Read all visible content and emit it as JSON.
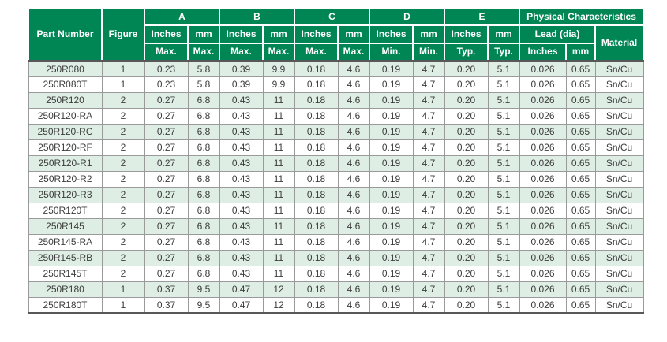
{
  "colors": {
    "header_green": "#008554",
    "header_text": "#ffffff",
    "row_shaded": "#deeee5",
    "row_plain": "#ffffff",
    "grid_line": "#9a9a9a",
    "heavy_line": "#58585a",
    "body_text": "#3c3c3c"
  },
  "table": {
    "header": {
      "part_number": "Part Number",
      "figure": "Figure",
      "groups": [
        {
          "label": "A",
          "unit_inches": "Inches",
          "unit_mm": "mm",
          "spec_inches": "Max.",
          "spec_mm": "Max."
        },
        {
          "label": "B",
          "unit_inches": "Inches",
          "unit_mm": "mm",
          "spec_inches": "Max.",
          "spec_mm": "Max."
        },
        {
          "label": "C",
          "unit_inches": "Inches",
          "unit_mm": "mm",
          "spec_inches": "Max.",
          "spec_mm": "Max."
        },
        {
          "label": "D",
          "unit_inches": "Inches",
          "unit_mm": "mm",
          "spec_inches": "Min.",
          "spec_mm": "Min."
        },
        {
          "label": "E",
          "unit_inches": "Inches",
          "unit_mm": "mm",
          "spec_inches": "Typ.",
          "spec_mm": "Typ."
        }
      ],
      "physical": {
        "label": "Physical Characteristics",
        "lead_label": "Lead (dia)",
        "lead_inches": "Inches",
        "lead_mm": "mm",
        "material": "Material"
      }
    },
    "rows": [
      {
        "part_number": "250R080",
        "figure": "1",
        "values": [
          "0.23",
          "5.8",
          "0.39",
          "9.9",
          "0.18",
          "4.6",
          "0.19",
          "4.7",
          "0.20",
          "5.1",
          "0.026",
          "0.65",
          "Sn/Cu"
        ]
      },
      {
        "part_number": "250R080T",
        "figure": "1",
        "values": [
          "0.23",
          "5.8",
          "0.39",
          "9.9",
          "0.18",
          "4.6",
          "0.19",
          "4.7",
          "0.20",
          "5.1",
          "0.026",
          "0.65",
          "Sn/Cu"
        ]
      },
      {
        "part_number": "250R120",
        "figure": "2",
        "values": [
          "0.27",
          "6.8",
          "0.43",
          "11",
          "0.18",
          "4.6",
          "0.19",
          "4.7",
          "0.20",
          "5.1",
          "0.026",
          "0.65",
          "Sn/Cu"
        ]
      },
      {
        "part_number": "250R120-RA",
        "figure": "2",
        "values": [
          "0.27",
          "6.8",
          "0.43",
          "11",
          "0.18",
          "4.6",
          "0.19",
          "4.7",
          "0.20",
          "5.1",
          "0.026",
          "0.65",
          "Sn/Cu"
        ]
      },
      {
        "part_number": "250R120-RC",
        "figure": "2",
        "values": [
          "0.27",
          "6.8",
          "0.43",
          "11",
          "0.18",
          "4.6",
          "0.19",
          "4.7",
          "0.20",
          "5.1",
          "0.026",
          "0.65",
          "Sn/Cu"
        ]
      },
      {
        "part_number": "250R120-RF",
        "figure": "2",
        "values": [
          "0.27",
          "6.8",
          "0.43",
          "11",
          "0.18",
          "4.6",
          "0.19",
          "4.7",
          "0.20",
          "5.1",
          "0.026",
          "0.65",
          "Sn/Cu"
        ]
      },
      {
        "part_number": "250R120-R1",
        "figure": "2",
        "values": [
          "0.27",
          "6.8",
          "0.43",
          "11",
          "0.18",
          "4.6",
          "0.19",
          "4.7",
          "0.20",
          "5.1",
          "0.026",
          "0.65",
          "Sn/Cu"
        ]
      },
      {
        "part_number": "250R120-R2",
        "figure": "2",
        "values": [
          "0.27",
          "6.8",
          "0.43",
          "11",
          "0.18",
          "4.6",
          "0.19",
          "4.7",
          "0.20",
          "5.1",
          "0.026",
          "0.65",
          "Sn/Cu"
        ]
      },
      {
        "part_number": "250R120-R3",
        "figure": "2",
        "values": [
          "0.27",
          "6.8",
          "0.43",
          "11",
          "0.18",
          "4.6",
          "0.19",
          "4.7",
          "0.20",
          "5.1",
          "0.026",
          "0.65",
          "Sn/Cu"
        ]
      },
      {
        "part_number": "250R120T",
        "figure": "2",
        "values": [
          "0.27",
          "6.8",
          "0.43",
          "11",
          "0.18",
          "4.6",
          "0.19",
          "4.7",
          "0.20",
          "5.1",
          "0.026",
          "0.65",
          "Sn/Cu"
        ]
      },
      {
        "part_number": "250R145",
        "figure": "2",
        "values": [
          "0.27",
          "6.8",
          "0.43",
          "11",
          "0.18",
          "4.6",
          "0.19",
          "4.7",
          "0.20",
          "5.1",
          "0.026",
          "0.65",
          "Sn/Cu"
        ]
      },
      {
        "part_number": "250R145-RA",
        "figure": "2",
        "values": [
          "0.27",
          "6.8",
          "0.43",
          "11",
          "0.18",
          "4.6",
          "0.19",
          "4.7",
          "0.20",
          "5.1",
          "0.026",
          "0.65",
          "Sn/Cu"
        ]
      },
      {
        "part_number": "250R145-RB",
        "figure": "2",
        "values": [
          "0.27",
          "6.8",
          "0.43",
          "11",
          "0.18",
          "4.6",
          "0.19",
          "4.7",
          "0.20",
          "5.1",
          "0.026",
          "0.65",
          "Sn/Cu"
        ]
      },
      {
        "part_number": "250R145T",
        "figure": "2",
        "values": [
          "0.27",
          "6.8",
          "0.43",
          "11",
          "0.18",
          "4.6",
          "0.19",
          "4.7",
          "0.20",
          "5.1",
          "0.026",
          "0.65",
          "Sn/Cu"
        ]
      },
      {
        "part_number": "250R180",
        "figure": "1",
        "values": [
          "0.37",
          "9.5",
          "0.47",
          "12",
          "0.18",
          "4.6",
          "0.19",
          "4.7",
          "0.20",
          "5.1",
          "0.026",
          "0.65",
          "Sn/Cu"
        ]
      },
      {
        "part_number": "250R180T",
        "figure": "1",
        "values": [
          "0.37",
          "9.5",
          "0.47",
          "12",
          "0.18",
          "4.6",
          "0.19",
          "4.7",
          "0.20",
          "5.1",
          "0.026",
          "0.65",
          "Sn/Cu"
        ]
      }
    ]
  }
}
